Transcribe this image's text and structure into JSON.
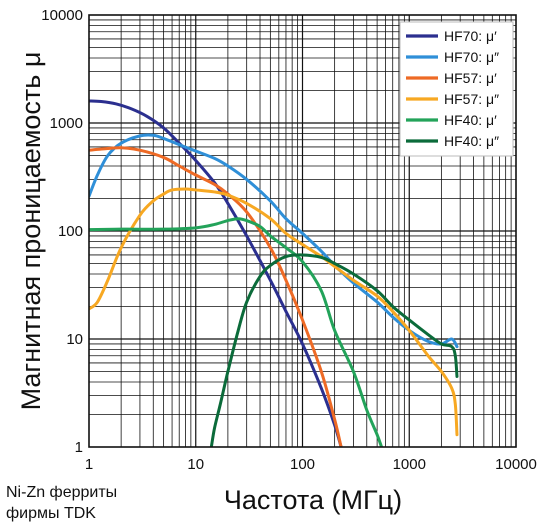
{
  "chart_data": {
    "type": "line",
    "xscale": "log",
    "yscale": "log",
    "xlim": [
      1,
      10000
    ],
    "ylim": [
      1,
      10000
    ],
    "grid": true,
    "legend_position": "top-right",
    "xlabel": "Частота (МГц)",
    "ylabel": "Магнитная проницаемость  μ",
    "annotation_lines": [
      "Ni-Zn ферриты",
      "фирмы TDK"
    ],
    "x_ticks": [
      "1",
      "10",
      "100",
      "1000",
      "10000"
    ],
    "y_ticks": [
      "1",
      "10",
      "100",
      "1000",
      "10000"
    ],
    "series": [
      {
        "name": "HF70: μ′",
        "color": "#2b2f8f",
        "points": [
          [
            1,
            1600
          ],
          [
            1.3,
            1580
          ],
          [
            1.8,
            1500
          ],
          [
            2.5,
            1350
          ],
          [
            3.5,
            1150
          ],
          [
            5,
            900
          ],
          [
            7,
            650
          ],
          [
            10,
            450
          ],
          [
            15,
            280
          ],
          [
            20,
            180
          ],
          [
            30,
            90
          ],
          [
            50,
            35
          ],
          [
            70,
            18
          ],
          [
            100,
            9
          ],
          [
            150,
            3.5
          ],
          [
            200,
            1.6
          ],
          [
            230,
            1
          ]
        ]
      },
      {
        "name": "HF70: μ″",
        "color": "#2f8fd8",
        "points": [
          [
            1,
            210
          ],
          [
            1.2,
            330
          ],
          [
            1.5,
            500
          ],
          [
            2,
            650
          ],
          [
            3,
            760
          ],
          [
            4,
            770
          ],
          [
            5,
            720
          ],
          [
            7,
            630
          ],
          [
            10,
            550
          ],
          [
            15,
            470
          ],
          [
            20,
            400
          ],
          [
            30,
            300
          ],
          [
            50,
            190
          ],
          [
            70,
            130
          ],
          [
            100,
            95
          ],
          [
            150,
            65
          ],
          [
            200,
            48
          ],
          [
            300,
            33
          ],
          [
            500,
            22
          ],
          [
            700,
            16
          ],
          [
            1000,
            12
          ],
          [
            1500,
            9.5
          ],
          [
            2000,
            9
          ],
          [
            2500,
            10
          ],
          [
            2800,
            8.5
          ]
        ]
      },
      {
        "name": "HF57: μ′",
        "color": "#ee6a25",
        "points": [
          [
            1,
            560
          ],
          [
            1.5,
            580
          ],
          [
            2,
            590
          ],
          [
            3,
            560
          ],
          [
            5,
            480
          ],
          [
            7,
            400
          ],
          [
            10,
            330
          ],
          [
            15,
            270
          ],
          [
            20,
            220
          ],
          [
            30,
            150
          ],
          [
            50,
            70
          ],
          [
            70,
            35
          ],
          [
            100,
            15
          ],
          [
            150,
            5
          ],
          [
            200,
            1.8
          ],
          [
            230,
            1
          ]
        ]
      },
      {
        "name": "HF57: μ″",
        "color": "#f7a822",
        "points": [
          [
            1,
            19
          ],
          [
            1.2,
            22
          ],
          [
            1.5,
            35
          ],
          [
            2,
            70
          ],
          [
            3,
            140
          ],
          [
            4,
            190
          ],
          [
            5,
            220
          ],
          [
            6,
            240
          ],
          [
            8,
            245
          ],
          [
            10,
            240
          ],
          [
            15,
            230
          ],
          [
            20,
            215
          ],
          [
            30,
            180
          ],
          [
            50,
            130
          ],
          [
            70,
            95
          ],
          [
            100,
            75
          ],
          [
            150,
            58
          ],
          [
            200,
            47
          ],
          [
            300,
            35
          ],
          [
            500,
            25
          ],
          [
            700,
            18
          ],
          [
            1000,
            12
          ],
          [
            1500,
            7
          ],
          [
            2000,
            5
          ],
          [
            2500,
            3.5
          ],
          [
            2700,
            2.5
          ],
          [
            2800,
            1.3
          ]
        ]
      },
      {
        "name": "HF40: μ′",
        "color": "#23a35a",
        "points": [
          [
            1,
            103
          ],
          [
            2,
            104
          ],
          [
            5,
            104
          ],
          [
            10,
            107
          ],
          [
            15,
            115
          ],
          [
            20,
            125
          ],
          [
            25,
            130
          ],
          [
            30,
            125
          ],
          [
            40,
            110
          ],
          [
            50,
            90
          ],
          [
            70,
            70
          ],
          [
            100,
            52
          ],
          [
            150,
            28
          ],
          [
            200,
            12
          ],
          [
            300,
            5
          ],
          [
            400,
            2.2
          ],
          [
            500,
            1.3
          ],
          [
            550,
            1
          ]
        ]
      },
      {
        "name": "HF40: μ″",
        "color": "#0b6b3a",
        "points": [
          [
            14,
            1
          ],
          [
            15,
            1.5
          ],
          [
            17,
            2.5
          ],
          [
            20,
            5
          ],
          [
            25,
            12
          ],
          [
            30,
            22
          ],
          [
            40,
            38
          ],
          [
            50,
            48
          ],
          [
            70,
            58
          ],
          [
            100,
            60
          ],
          [
            150,
            57
          ],
          [
            200,
            50
          ],
          [
            300,
            40
          ],
          [
            500,
            28
          ],
          [
            700,
            20
          ],
          [
            1000,
            15
          ],
          [
            1500,
            11
          ],
          [
            2000,
            9
          ],
          [
            2500,
            8.5
          ],
          [
            2700,
            7
          ],
          [
            2800,
            4.5
          ]
        ]
      }
    ]
  }
}
